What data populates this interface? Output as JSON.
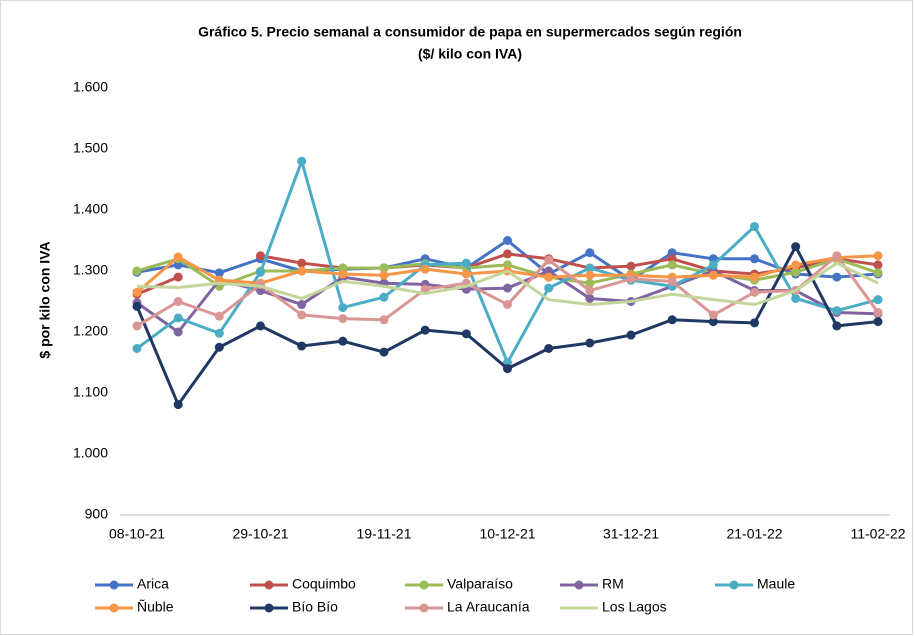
{
  "chart_data": {
    "type": "line",
    "title": "Gráfico 5. Precio semanal a consumidor de papa en supermercados según región",
    "subtitle": "($/ kilo con IVA)",
    "y_label": "$ por kilo con IVA",
    "categories": [
      "08-10-21",
      null,
      null,
      "29-10-21",
      null,
      null,
      "19-11-21",
      null,
      null,
      "10-12-21",
      null,
      null,
      "31-12-21",
      null,
      null,
      "21-01-22",
      null,
      null,
      "11-02-22"
    ],
    "ylim": [
      900,
      1600
    ],
    "yticks": [
      {
        "value": 900,
        "label": "900"
      },
      {
        "value": 1000,
        "label": "1.000"
      },
      {
        "value": 1100,
        "label": "1.100"
      },
      {
        "value": 1200,
        "label": "1.200"
      },
      {
        "value": 1300,
        "label": "1.300"
      },
      {
        "value": 1400,
        "label": "1.400"
      },
      {
        "value": 1500,
        "label": "1.500"
      },
      {
        "value": 1600,
        "label": "1.600"
      }
    ],
    "grid": false,
    "legend": "bottom",
    "series": [
      {
        "name": "Arica",
        "color": "#4472c4",
        "marker": true,
        "values": [
          1298,
          1310,
          1297,
          1320,
          1300,
          1303,
          1305,
          1320,
          1305,
          1350,
          1295,
          1330,
          1285,
          1330,
          1320,
          1320,
          1295,
          1290,
          1295
        ]
      },
      {
        "name": "Coquimbo",
        "color": "#c0504d",
        "marker": true,
        "values": [
          1262,
          1290,
          null,
          1325,
          1313,
          1305,
          1305,
          1310,
          1305,
          1328,
          1320,
          1305,
          1308,
          1320,
          1300,
          1295,
          1305,
          1320,
          1310
        ]
      },
      {
        "name": "Valparaíso",
        "color": "#9bbb59",
        "marker": true,
        "values": [
          1300,
          1320,
          1275,
          1300,
          1300,
          1305,
          1305,
          1312,
          1305,
          1310,
          1290,
          1280,
          1295,
          1310,
          1295,
          1285,
          1298,
          1320,
          1297
        ]
      },
      {
        "name": "RM",
        "color": "#8064a2",
        "marker": true,
        "values": [
          1248,
          1200,
          1285,
          1268,
          1245,
          1290,
          1280,
          1278,
          1270,
          1272,
          1300,
          1255,
          1250,
          1275,
          1300,
          1268,
          1268,
          1232,
          1230
        ]
      },
      {
        "name": "Maule",
        "color": "#4bacc6",
        "marker": true,
        "values": [
          1173,
          1223,
          1198,
          1298,
          1480,
          1240,
          1257,
          1310,
          1313,
          1150,
          1272,
          1305,
          1285,
          1275,
          1310,
          1373,
          1255,
          1235,
          1253
        ]
      },
      {
        "name": "Ñuble",
        "color": "#f79646",
        "marker": true,
        "values": [
          1265,
          1323,
          1285,
          1280,
          1300,
          1295,
          1293,
          1303,
          1295,
          1300,
          1290,
          1293,
          1293,
          1290,
          1293,
          1290,
          1310,
          1322,
          1325
        ]
      },
      {
        "name": "Bío Bío",
        "color": "#1f3864",
        "marker": true,
        "values": [
          1242,
          1081,
          1175,
          1210,
          1177,
          1185,
          1167,
          1203,
          1197,
          1140,
          1173,
          1182,
          1195,
          1220,
          1217,
          1215,
          1340,
          1210,
          1217
        ]
      },
      {
        "name": "La Araucanía",
        "color": "#d99694",
        "marker": true,
        "values": [
          1210,
          1250,
          1226,
          1278,
          1228,
          1222,
          1220,
          1270,
          1280,
          1245,
          1318,
          1268,
          1287,
          1283,
          1228,
          1265,
          1268,
          1325,
          1232
        ]
      },
      {
        "name": "Los Lagos",
        "color": "#c3d69b",
        "marker": false,
        "values": [
          1275,
          1273,
          1280,
          1275,
          1255,
          1283,
          1275,
          1263,
          1275,
          1300,
          1253,
          1245,
          1250,
          1262,
          1253,
          1245,
          1268,
          1313,
          1280
        ]
      }
    ]
  }
}
